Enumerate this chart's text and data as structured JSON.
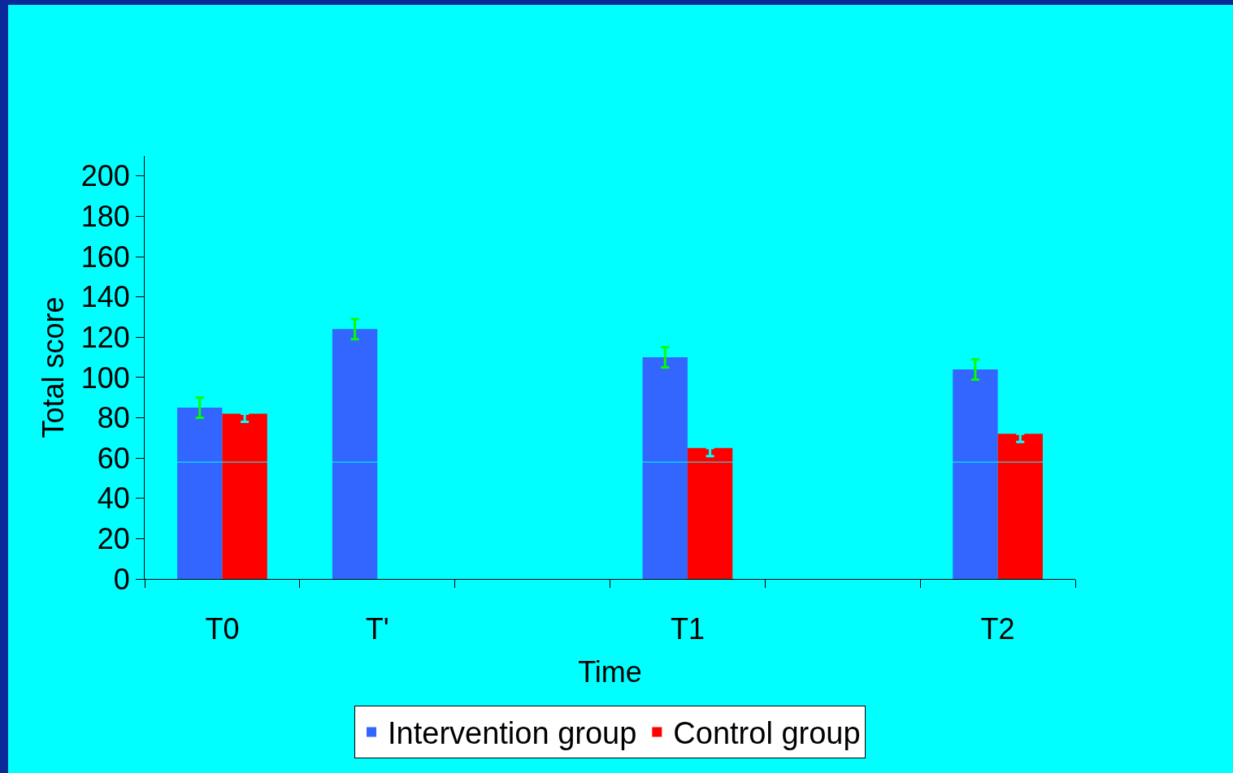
{
  "chart_data": {
    "type": "bar",
    "xlabel": "Time",
    "ylabel": "Total score",
    "categories": [
      "T0",
      "T'",
      null,
      "T1",
      null,
      "T2"
    ],
    "series": [
      {
        "name": "Intervention group",
        "color": "#3366ff",
        "values": [
          85,
          124,
          null,
          110,
          null,
          104
        ],
        "errors": [
          [
            80,
            90
          ],
          [
            119,
            129
          ],
          null,
          [
            105,
            115
          ],
          null,
          [
            99,
            109
          ]
        ]
      },
      {
        "name": "Control group",
        "color": "#ff0000",
        "values": [
          82,
          null,
          null,
          65,
          null,
          72
        ],
        "errors": [
          [
            78,
            82
          ],
          null,
          null,
          [
            61,
            65
          ],
          null,
          [
            68,
            72
          ]
        ]
      }
    ],
    "ylim": [
      0,
      210
    ],
    "yticks": [
      0,
      20,
      40,
      60,
      80,
      100,
      120,
      140,
      160,
      180,
      200
    ],
    "ref_lines": [
      {
        "axis": "y",
        "value": 58,
        "color": "#00ffff"
      }
    ],
    "grid": false,
    "legend": "bottom"
  }
}
